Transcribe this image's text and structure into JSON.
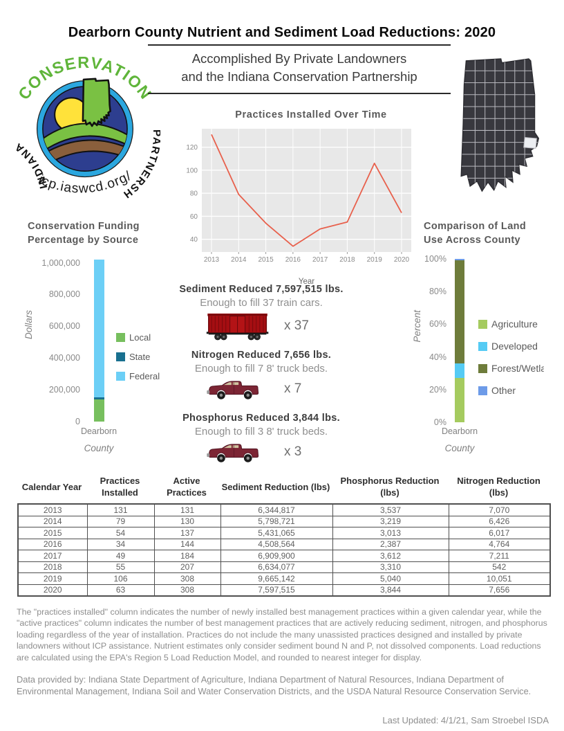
{
  "page": {
    "title": "Dearborn County Nutrient and Sediment Load Reductions: 2020",
    "subtitle_line1": "Accomplished By Private Landowners",
    "subtitle_line2": "and the Indiana Conservation Partnership"
  },
  "logo": {
    "arc_top": "CONSERVATION",
    "arc_left": "INDIANA",
    "arc_right": "PARTNERSHIP",
    "url": "icp.iaswcd.org/"
  },
  "chart_data": [
    {
      "type": "line",
      "title": "Practices Installed Over Time",
      "x": [
        "2013",
        "2014",
        "2015",
        "2016",
        "2017",
        "2018",
        "2019",
        "2020"
      ],
      "values": [
        131,
        79,
        54,
        34,
        49,
        55,
        106,
        63
      ],
      "xlabel": "Year",
      "yticks": [
        40,
        60,
        80,
        100,
        120
      ],
      "ylim": [
        29,
        136
      ],
      "line_color": "#e8604c",
      "plot_bg": "#e8e8e8",
      "grid": "on"
    },
    {
      "type": "bar",
      "stacked": true,
      "title": "Conservation Funding Percentage by Source",
      "title_lines": [
        "Conservation Funding",
        "Percentage by Source"
      ],
      "ylabel": "Dollars",
      "xlabel": "County",
      "categories": [
        "Dearborn"
      ],
      "ymax": 1020000,
      "yticks": [
        {
          "v": 0,
          "label": "0"
        },
        {
          "v": 200000,
          "label": "200,000"
        },
        {
          "v": 400000,
          "label": "400,000"
        },
        {
          "v": 600000,
          "label": "600,000"
        },
        {
          "v": 800000,
          "label": "800,000"
        },
        {
          "v": 1000000,
          "label": "1,000,000"
        }
      ],
      "series": [
        {
          "name": "Local",
          "value": 140000,
          "color": "#77bf5e"
        },
        {
          "name": "State",
          "value": 12000,
          "color": "#19708f"
        },
        {
          "name": "Federal",
          "value": 868000,
          "color": "#6ccff6"
        }
      ],
      "legend_position": "right"
    },
    {
      "type": "bar",
      "stacked": true,
      "title": "Comparison of Land Use Across County",
      "title_lines": [
        "Comparison of Land",
        "Use Across County"
      ],
      "ylabel": "Percent",
      "xlabel": "County",
      "categories": [
        "Dearborn"
      ],
      "ymax": 100,
      "yticks": [
        {
          "v": 0,
          "label": "0%"
        },
        {
          "v": 20,
          "label": "20%"
        },
        {
          "v": 40,
          "label": "40%"
        },
        {
          "v": 60,
          "label": "60%"
        },
        {
          "v": 80,
          "label": "80%"
        },
        {
          "v": 100,
          "label": "100%"
        }
      ],
      "series": [
        {
          "name": "Agriculture",
          "value": 27,
          "color": "#a5cb5f"
        },
        {
          "name": "Developed",
          "value": 9,
          "color": "#55cbf4"
        },
        {
          "name": "Forest/Wetland",
          "value": 63,
          "color": "#6e7c3b"
        },
        {
          "name": "Other",
          "value": 1,
          "color": "#6d9be8"
        }
      ],
      "legend_position": "right"
    }
  ],
  "reductions": [
    {
      "heading": "Sediment Reduced 7,597,515 lbs.",
      "sub": "Enough to fill 37 train cars.",
      "icon": "train-car",
      "multiplier": "x 37"
    },
    {
      "heading": "Nitrogen Reduced 7,656  lbs.",
      "sub": "Enough to fill 7 8' truck beds.",
      "icon": "pickup-truck",
      "multiplier": "x 7"
    },
    {
      "heading": "Phosphorus Reduced 3,844  lbs.",
      "sub": "Enough to fill 3  8' truck beds.",
      "icon": "pickup-truck",
      "multiplier": "x 3"
    }
  ],
  "table": {
    "headers": [
      "Calendar Year",
      "Practices Installed",
      "Active Practices",
      "Sediment Reduction (lbs)",
      "Phosphorus Reduction (lbs)",
      "Nitrogen Reduction (lbs)"
    ],
    "rows": [
      [
        "2013",
        "131",
        "131",
        "6,344,817",
        "3,537",
        "7,070"
      ],
      [
        "2014",
        "79",
        "130",
        "5,798,721",
        "3,219",
        "6,426"
      ],
      [
        "2015",
        "54",
        "137",
        "5,431,065",
        "3,013",
        "6,017"
      ],
      [
        "2016",
        "34",
        "144",
        "4,508,564",
        "2,387",
        "4,764"
      ],
      [
        "2017",
        "49",
        "184",
        "6,909,900",
        "3,612",
        "7,211"
      ],
      [
        "2018",
        "55",
        "207",
        "6,634,077",
        "3,310",
        "542"
      ],
      [
        "2019",
        "106",
        "308",
        "9,665,142",
        "5,040",
        "10,051"
      ],
      [
        "2020",
        "63",
        "308",
        "7,597,515",
        "3,844",
        "7,656"
      ]
    ]
  },
  "footnotes": {
    "methodology": "The \"practices installed\" column indicates the number of newly installed best management practices within a given calendar year, while the \"active practices\" column indicates the number of best management practices that are actively reducing sediment, nitrogen, and phosphorus loading regardless of the year of installation.  Practices do not include the many unassisted practices designed and installed by private landowners without ICP assistance. Nutrient estimates only consider sediment bound N and P, not dissolved components. Load reductions are calculated using the EPA's Region 5 Load Reduction Model, and rounded to nearest integer for display.",
    "data_provided": "Data provided by: Indiana State Department of Agriculture, Indiana Department of Natural Resources, Indiana Department of Environmental Management, Indiana Soil and Water Conservation Districts, and the USDA Natural Resource Conservation Service.",
    "last_updated": "Last Updated: 4/1/21, Sam Stroebel ISDA"
  }
}
